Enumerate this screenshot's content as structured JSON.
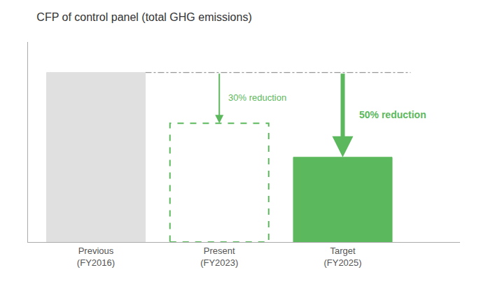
{
  "chart_data": {
    "type": "bar",
    "title": "CFP of control panel (total GHG emissions)",
    "categories": [
      "Previous\n(FY2016)",
      "Present\n(FY2023)",
      "Target\n(FY2025)"
    ],
    "values": [
      1.0,
      0.7,
      0.5
    ],
    "colors": [
      "#e0e0e0",
      null,
      "#5cb85c"
    ],
    "color": "#5cb85c",
    "line_style": "dashed",
    "reference_line": 1.0,
    "annotations": [
      {
        "category": "Present\n(FY2023)",
        "text": "30% reduction"
      },
      {
        "category": "Target\n(FY2025)",
        "text": "50% reduction"
      }
    ],
    "ylim": [
      0,
      1.18
    ],
    "yticks": [],
    "tick_labels": "x",
    "grid": false
  }
}
